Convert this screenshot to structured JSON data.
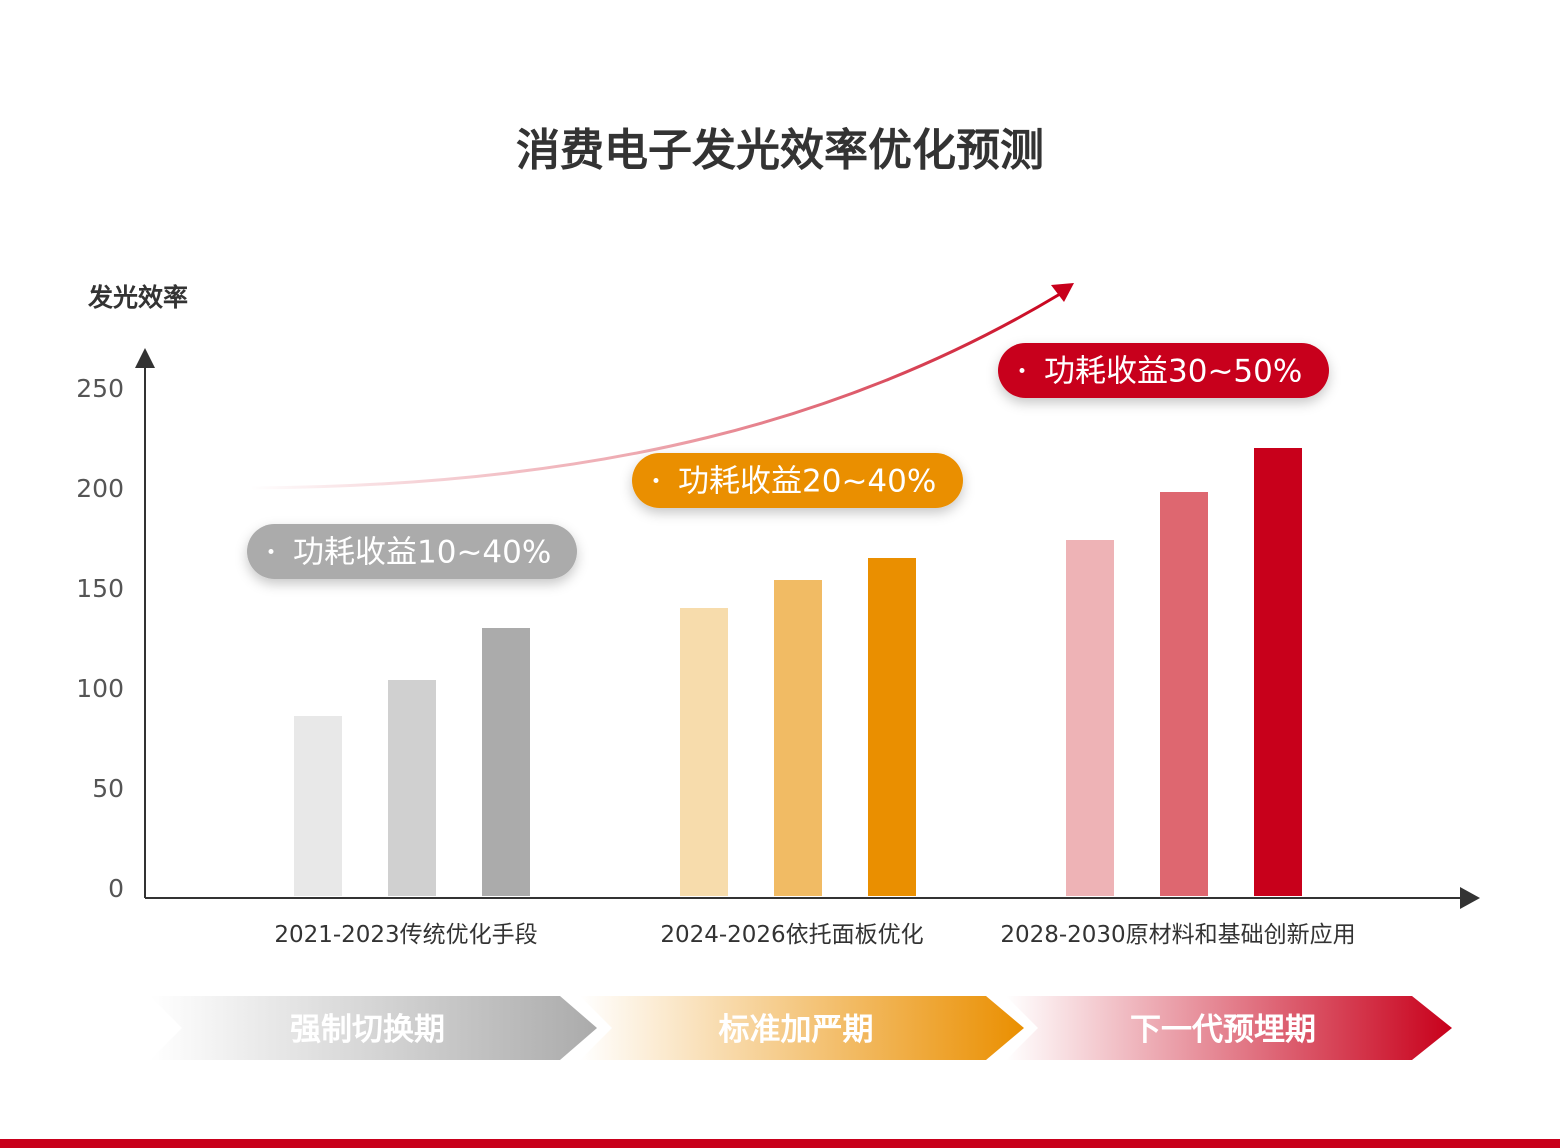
{
  "chart_data": {
    "type": "bar",
    "title": "消费电子发光效率优化预测",
    "ylabel": "发光效率",
    "ylim": [
      0,
      250
    ],
    "yticks": [
      "0",
      "50",
      "100",
      "150",
      "200",
      "250"
    ],
    "grid": false,
    "categories": [
      "2021-2023传统优化手段",
      "2024-2026依托面板优化",
      "2028-2030原材料和基础创新应用"
    ],
    "groups": [
      {
        "category": "2021-2023传统优化手段",
        "values": [
          86,
          104,
          130
        ],
        "colors": [
          "#e8e8e8",
          "#d0d0d0",
          "#ababab"
        ],
        "badge": "功耗收益10~40%",
        "badge_color": "#ababab"
      },
      {
        "category": "2024-2026依托面板优化",
        "values": [
          140,
          154,
          165
        ],
        "colors": [
          "#f7dcac",
          "#f1bb64",
          "#ea8f00"
        ],
        "badge": "功耗收益20~40%",
        "badge_color": "#ea8f00"
      },
      {
        "category": "2028-2030原材料和基础创新应用",
        "values": [
          174,
          198,
          220
        ],
        "colors": [
          "#eeb3b6",
          "#de6770",
          "#c8001b"
        ],
        "badge": "功耗收益30~50%",
        "badge_color": "#c8001b"
      }
    ],
    "phases": [
      {
        "label": "强制切换期",
        "color": "#ababab"
      },
      {
        "label": "标准加严期",
        "color": "#ea8f00"
      },
      {
        "label": "下一代预埋期",
        "color": "#c8001b"
      }
    ],
    "trend_arrow_color": "#c8001b"
  }
}
